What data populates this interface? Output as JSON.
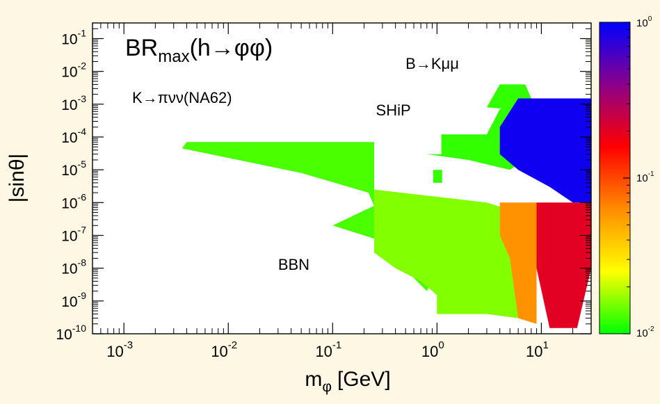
{
  "chart_data": {
    "type": "heatmap",
    "title": "BR",
    "title_sub": "max",
    "title_rest": "(h→φφ)",
    "xlabel": "m",
    "xlabel_sub": "φ",
    "xlabel_unit": "[GeV]",
    "ylabel": "|sinθ|",
    "xscale": "log",
    "yscale": "log",
    "xlim": [
      0.0005,
      30
    ],
    "ylim": [
      1e-10,
      0.3
    ],
    "x_ticks": [
      {
        "base": "10",
        "exp": "-3",
        "value": 0.001
      },
      {
        "base": "10",
        "exp": "-2",
        "value": 0.01
      },
      {
        "base": "10",
        "exp": "-1",
        "value": 0.1
      },
      {
        "base": "10",
        "exp": "0",
        "value": 1
      },
      {
        "base": "10",
        "exp": "1",
        "value": 10
      }
    ],
    "y_ticks": [
      {
        "base": "10",
        "exp": "-10",
        "value": 1e-10
      },
      {
        "base": "10",
        "exp": "-9",
        "value": 1e-09
      },
      {
        "base": "10",
        "exp": "-8",
        "value": 1e-08
      },
      {
        "base": "10",
        "exp": "-7",
        "value": 1e-07
      },
      {
        "base": "10",
        "exp": "-6",
        "value": 1e-06
      },
      {
        "base": "10",
        "exp": "-5",
        "value": 1e-05
      },
      {
        "base": "10",
        "exp": "-4",
        "value": 0.0001
      },
      {
        "base": "10",
        "exp": "-3",
        "value": 0.001
      },
      {
        "base": "10",
        "exp": "-2",
        "value": 0.01
      },
      {
        "base": "10",
        "exp": "-1",
        "value": 0.1
      }
    ],
    "colorbar": {
      "scale": "log",
      "range": [
        0.01,
        1
      ],
      "colors": [
        "#00ff00",
        "#ffff00",
        "#ff8c00",
        "#ff0000",
        "#8b008b",
        "#0000ff"
      ],
      "ticks": [
        {
          "base": "10",
          "exp": "0",
          "value": 1
        },
        {
          "base": "10",
          "exp": "-1",
          "value": 0.1
        },
        {
          "base": "10",
          "exp": "-2",
          "value": 0.01
        }
      ]
    },
    "annotations": [
      {
        "id": "bkmumu",
        "text": "B→Kμμ",
        "x": 0.5,
        "y": 0.012
      },
      {
        "id": "kpinunu",
        "text": "K→πνν(NA62)",
        "x": 0.0012,
        "y": 0.0011
      },
      {
        "id": "ship",
        "text": "SHiP",
        "x": 0.26,
        "y": 0.00045
      },
      {
        "id": "bbn",
        "text": "BBN",
        "x": 0.03,
        "y": 9e-09
      }
    ],
    "regions": [
      {
        "name": "green band",
        "level": 0.013,
        "polygon": [
          [
            0.0036,
            4.5e-05
          ],
          [
            0.004,
            7e-05
          ],
          [
            0.25,
            7e-05
          ],
          [
            0.25,
            2.5e-06
          ],
          [
            0.5,
            1.4e-06
          ],
          [
            1,
            1e-06
          ],
          [
            3,
            9e-07
          ],
          [
            3,
            1e-07
          ],
          [
            1,
            1e-08
          ],
          [
            0.8,
            2e-09
          ],
          [
            0.25,
            8e-08
          ],
          [
            0.1,
            2e-07
          ],
          [
            0.25,
            8e-07
          ],
          [
            0.22,
            2e-06
          ],
          [
            0.05,
            8e-06
          ],
          [
            0.0036,
            4.5e-05
          ]
        ]
      },
      {
        "name": "green lower region",
        "level": 0.016,
        "polygon": [
          [
            0.25,
            2.5e-06
          ],
          [
            3,
            1e-06
          ],
          [
            6,
            5e-07
          ],
          [
            6,
            3e-10
          ],
          [
            3,
            4e-10
          ],
          [
            1,
            4e-10
          ],
          [
            1,
            1.5e-09
          ],
          [
            0.7,
            4e-09
          ],
          [
            0.4,
            1e-08
          ],
          [
            0.25,
            3e-08
          ],
          [
            0.25,
            2.5e-06
          ]
        ]
      },
      {
        "name": "upper green strip",
        "level": 0.012,
        "polygon": [
          [
            0.8,
            3e-05
          ],
          [
            1.1,
            3e-05
          ],
          [
            1.1,
            0.00012
          ],
          [
            3,
            0.00012
          ],
          [
            4,
            0.0007
          ],
          [
            7,
            0.0015
          ],
          [
            7,
            2e-05
          ],
          [
            5,
            1e-05
          ],
          [
            2,
            2e-05
          ],
          [
            0.8,
            3e-05
          ]
        ]
      },
      {
        "name": "lone column",
        "level": 0.012,
        "polygon": [
          [
            0.92,
            1e-05
          ],
          [
            1.12,
            1e-05
          ],
          [
            1.12,
            4e-06
          ],
          [
            0.92,
            4e-06
          ]
        ]
      },
      {
        "name": "upper green cluster",
        "level": 0.012,
        "polygon": [
          [
            3,
            0.0008
          ],
          [
            4,
            0.004
          ],
          [
            7,
            0.004
          ],
          [
            8,
            0.0015
          ],
          [
            5,
            0.0007
          ],
          [
            3,
            0.0008
          ]
        ]
      },
      {
        "name": "orange transition",
        "level": 0.06,
        "polygon": [
          [
            4,
            1e-06
          ],
          [
            9,
            1e-06
          ],
          [
            9,
            2e-10
          ],
          [
            6,
            3e-10
          ],
          [
            5,
            2e-08
          ],
          [
            4,
            1e-07
          ],
          [
            4,
            1e-06
          ]
        ]
      },
      {
        "name": "red heavy region",
        "level": 0.2,
        "polygon": [
          [
            9,
            1e-06
          ],
          [
            30,
            1e-06
          ],
          [
            30,
            1e-08
          ],
          [
            22,
            1.5e-10
          ],
          [
            12,
            1.5e-10
          ],
          [
            9,
            1e-08
          ],
          [
            9,
            1e-06
          ]
        ]
      },
      {
        "name": "blue high-BR region",
        "level": 0.9,
        "polygon": [
          [
            6,
            0.0015
          ],
          [
            30,
            0.0015
          ],
          [
            30,
            1e-06
          ],
          [
            20,
            1e-06
          ],
          [
            12,
            3e-06
          ],
          [
            6,
            1e-05
          ],
          [
            4,
            3e-05
          ],
          [
            4,
            0.0002
          ],
          [
            6,
            0.0015
          ]
        ]
      }
    ]
  }
}
